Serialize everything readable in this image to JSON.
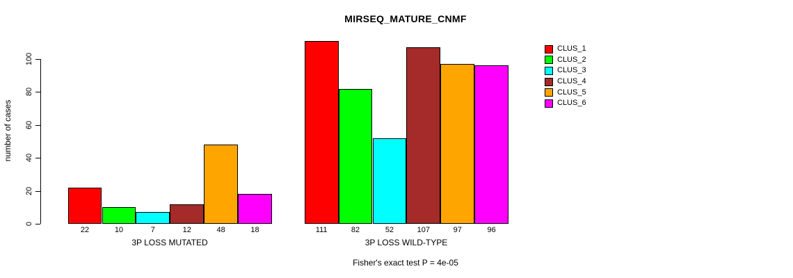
{
  "chart_data": {
    "type": "bar",
    "title": "MIRSEQ_MATURE_CNMF",
    "ylabel": "number of cases",
    "footer": "Fisher's exact test P = 4e-05",
    "yticks": [
      0,
      20,
      40,
      60,
      80,
      100
    ],
    "ylim": [
      0,
      111
    ],
    "grid": false,
    "legend_position": "right",
    "categories": [
      "CLUS_1",
      "CLUS_2",
      "CLUS_3",
      "CLUS_4",
      "CLUS_5",
      "CLUS_6"
    ],
    "legend": [
      {
        "label": "CLUS_1",
        "color": "#ff0000"
      },
      {
        "label": "CLUS_2",
        "color": "#00ff00"
      },
      {
        "label": "CLUS_3",
        "color": "#00ffff"
      },
      {
        "label": "CLUS_4",
        "color": "#a52a2a"
      },
      {
        "label": "CLUS_5",
        "color": "#ffa500"
      },
      {
        "label": "CLUS_6",
        "color": "#ff00ff"
      }
    ],
    "groups": [
      {
        "label": "3P LOSS MUTATED",
        "values": [
          22,
          10,
          7,
          12,
          48,
          18
        ]
      },
      {
        "label": "3P LOSS WILD-TYPE",
        "values": [
          111,
          82,
          52,
          107,
          97,
          96
        ]
      }
    ],
    "bar_value_labels_shown": true
  }
}
